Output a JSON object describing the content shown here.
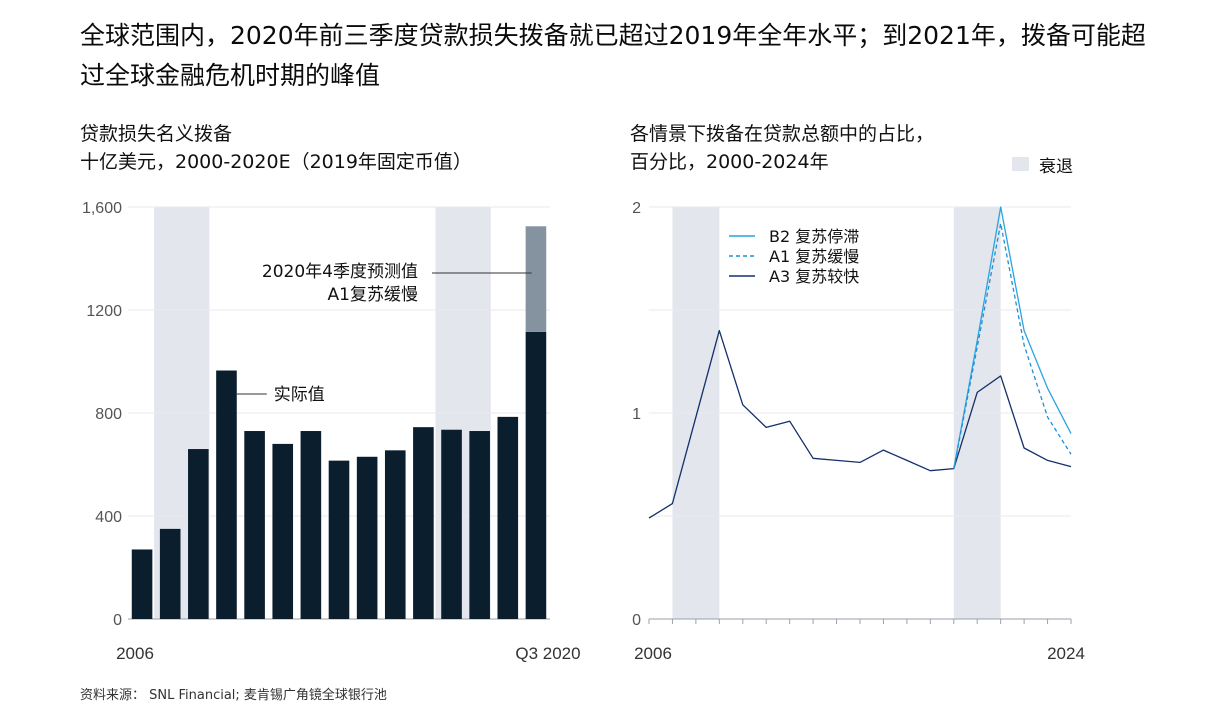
{
  "title": "全球范围内，2020年前三季度贷款损失拨备就已超过2019年全年水平；到2021年，拨备可能超过全球金融危机时期的峰值",
  "source": "资料来源： SNL Financial; 麦肯锡广角镜全球银行池",
  "colors": {
    "bar": "#0b1e2d",
    "forecast": "#8593a0",
    "recession": "#e3e6ec",
    "b2": "#2aa4e0",
    "a1": "#1f8fd6",
    "a3": "#14306b",
    "grid": "#e8eaee"
  },
  "chart_data": [
    {
      "type": "bar",
      "title_line1": "贷款损失名义拨备",
      "title_line2": "十亿美元，2000-2020E（2019年固定币值）",
      "ylim": [
        0,
        1600
      ],
      "ytick_values": [
        0,
        400,
        800,
        1200,
        1600
      ],
      "ytick_labels": [
        "0",
        "400",
        "800",
        "1200",
        "1,600"
      ],
      "x_labels": [
        "2006",
        "Q3 2020"
      ],
      "bar_count": 15,
      "values": [
        270,
        350,
        660,
        965,
        730,
        680,
        730,
        615,
        630,
        655,
        745,
        735,
        730,
        785,
        1115
      ],
      "forecast_top": 1525,
      "recession_bars": [
        [
          1,
          2
        ],
        [
          11,
          12
        ]
      ],
      "annotations": {
        "actual": "实际值",
        "forecast_line1": "2020年4季度预测值",
        "forecast_line2": "A1复苏缓慢"
      },
      "grid": true
    },
    {
      "type": "line",
      "title_line1": "各情景下拨备在贷款总额中的占比，",
      "title_line2": "百分比，2000-2024年",
      "recession_label": "衰退",
      "ylim": [
        0,
        2
      ],
      "ytick_values": [
        0,
        1,
        2
      ],
      "ytick_labels": [
        "0",
        "1",
        "2"
      ],
      "x_labels": [
        "2006",
        "2024"
      ],
      "point_count": 19,
      "recession_index_ranges": [
        [
          1,
          3
        ],
        [
          13,
          15
        ]
      ],
      "series": [
        {
          "name": "B2 复苏停滞",
          "style": "solid",
          "color": "#2aa4e0",
          "start_index": 13,
          "values": [
            0.73,
            1.35,
            2.0,
            1.4,
            1.12,
            0.9
          ]
        },
        {
          "name": "A1 复苏缓慢",
          "style": "dashed",
          "color": "#1f8fd6",
          "start_index": 13,
          "values": [
            0.73,
            1.32,
            1.92,
            1.33,
            0.98,
            0.8
          ]
        },
        {
          "name": "A3 复苏较快",
          "style": "solid",
          "color": "#14306b",
          "start_index": 0,
          "values": [
            0.49,
            0.56,
            0.98,
            1.4,
            1.04,
            0.93,
            0.96,
            0.78,
            0.77,
            0.76,
            0.82,
            0.77,
            0.72,
            0.73,
            1.1,
            1.18,
            0.83,
            0.77,
            0.74
          ]
        }
      ],
      "grid": true
    }
  ]
}
